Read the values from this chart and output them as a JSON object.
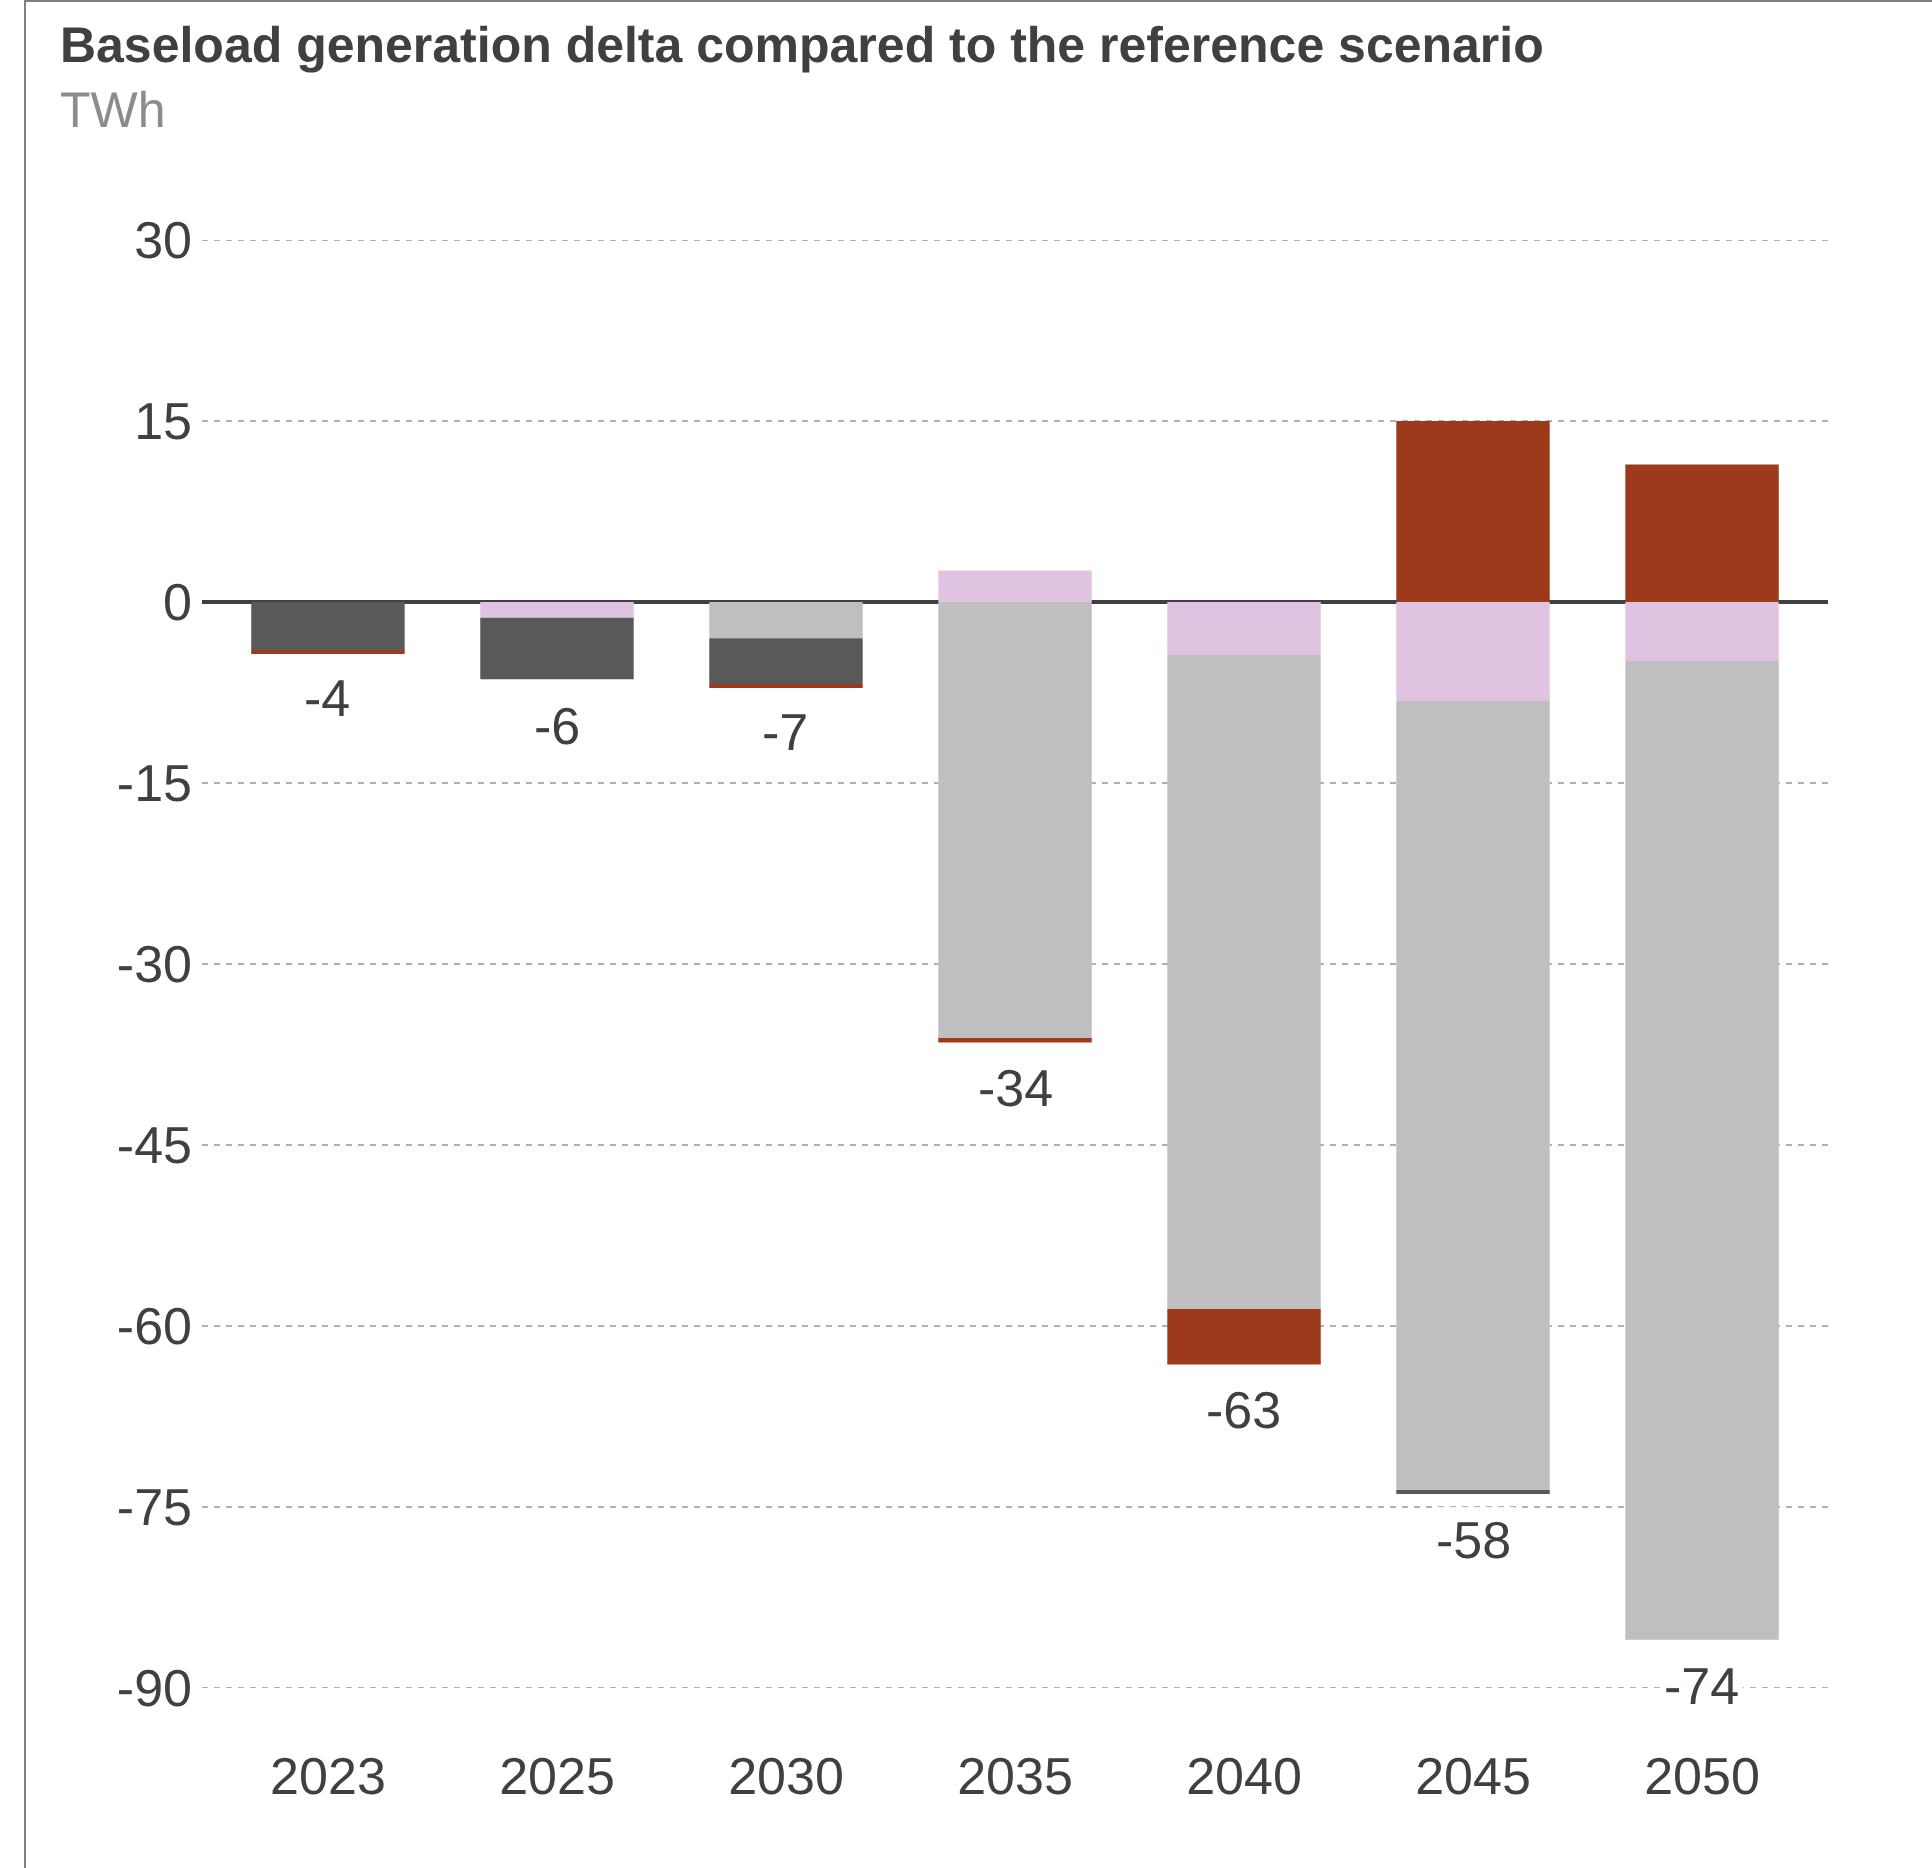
{
  "chart_data": {
    "type": "bar",
    "title": "Baseload generation delta compared to the reference scenario",
    "subtitle": "TWh",
    "categories": [
      "2023",
      "2025",
      "2030",
      "2035",
      "2040",
      "2045",
      "2050"
    ],
    "stacked": true,
    "series": [
      {
        "color": "#e0c3e0",
        "values": [
          0,
          -1.3,
          0,
          2.6,
          -4.4,
          -8.2,
          -4.9
        ]
      },
      {
        "color": "#bfbfbf",
        "values": [
          0,
          0,
          -3,
          -36.2,
          -54.2,
          -65.5,
          -81.1
        ]
      },
      {
        "color": "#595959",
        "values": [
          -4,
          -5.1,
          -3.8,
          0,
          0,
          -0.2,
          0
        ]
      },
      {
        "color": "#9e3a1c",
        "values": [
          -0.2,
          0,
          -0.2,
          -0.3,
          -4.6,
          15,
          11.4
        ]
      }
    ],
    "totals": [
      "-4",
      "-6",
      "-7",
      "-34",
      "-63",
      "-58",
      "-74"
    ],
    "ylim": [
      -90,
      30
    ],
    "yticks": [
      30,
      15,
      0,
      -15,
      -30,
      -45,
      -60,
      -75,
      -90
    ],
    "grid": "y"
  }
}
